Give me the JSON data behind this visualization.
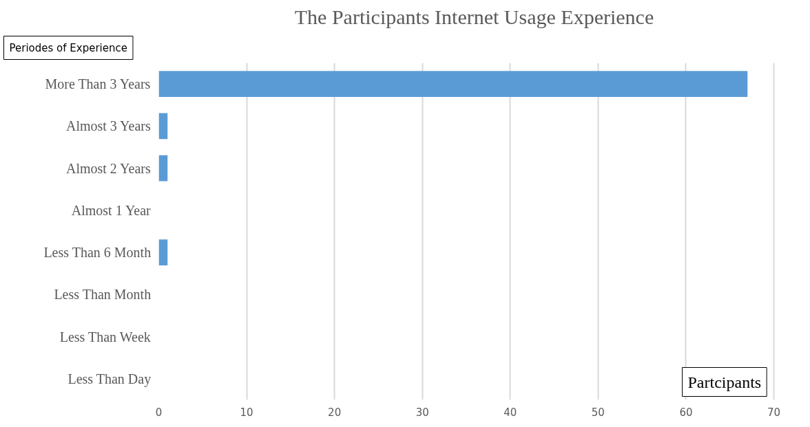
{
  "chart_data": {
    "type": "bar",
    "orientation": "horizontal",
    "title": "The Participants Internet Usage Experience",
    "xlabel": "Partcipants",
    "ylabel": "Periodes of Experience",
    "categories": [
      "More Than 3 Years",
      "Almost 3 Years",
      "Almost 2 Years",
      "Almost 1 Year",
      "Less Than 6 Month",
      "Less Than Month",
      "Less Than Week",
      "Less Than Day"
    ],
    "values": [
      67,
      1,
      1,
      0,
      1,
      0,
      0,
      0
    ],
    "color": "#5b9bd5",
    "xlim": [
      0,
      70
    ],
    "xticks": [
      0,
      10,
      20,
      30,
      40,
      50,
      60,
      70
    ],
    "grid": "x"
  }
}
